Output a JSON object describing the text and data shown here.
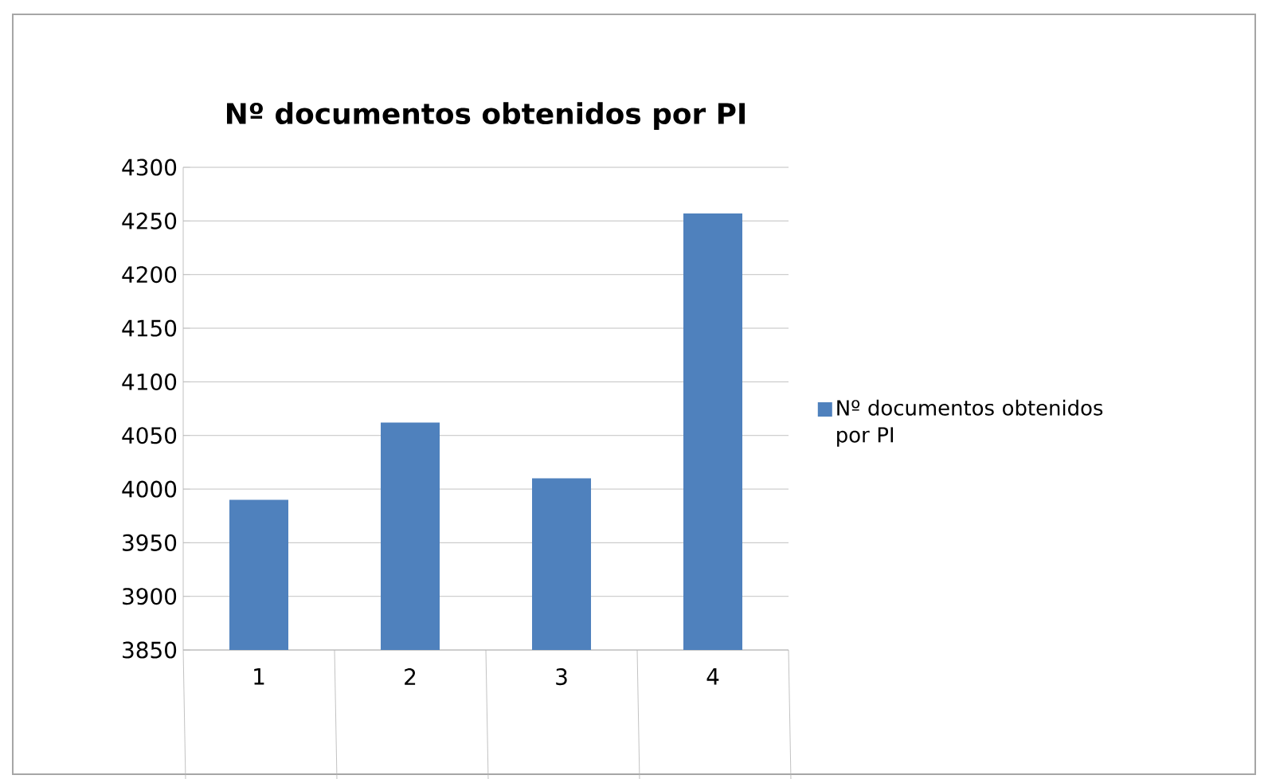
{
  "chart_data": {
    "type": "bar",
    "title": "Nº documentos obtenidos por PI",
    "categories": [
      "1",
      "2",
      "3",
      "4"
    ],
    "series": [
      {
        "name": "Nº documentos obtenidos por PI",
        "color": "#4f81bd",
        "values": [
          3990,
          4062,
          4010,
          4257
        ]
      }
    ],
    "ylim": [
      3850,
      4300
    ],
    "yticks": [
      3850,
      3900,
      3950,
      4000,
      4050,
      4100,
      4150,
      4200,
      4250,
      4300
    ],
    "grid": "y",
    "legend": "right"
  }
}
